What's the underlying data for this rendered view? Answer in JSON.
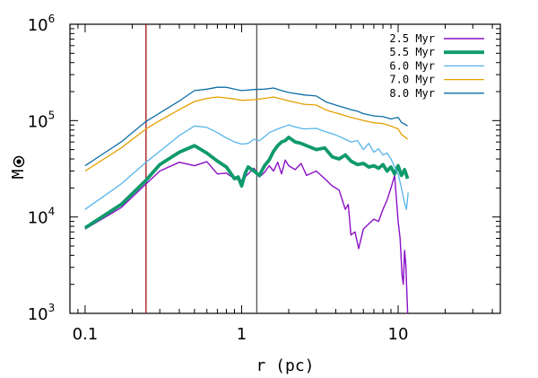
{
  "chart_data": {
    "type": "line",
    "xlabel": "r (pc)",
    "ylabel": "M",
    "ylabel_symbol": "sun-icon",
    "xscale": "log",
    "yscale": "log",
    "xlim": [
      0.08,
      45
    ],
    "ylim": [
      1000,
      1000000
    ],
    "x_tick_labels": [
      {
        "value": 0.1,
        "label": "0.1"
      },
      {
        "value": 1,
        "label": "1"
      },
      {
        "value": 10,
        "label": "10"
      }
    ],
    "y_tick_labels": [
      {
        "value": 1000,
        "base": "10",
        "exp": "3"
      },
      {
        "value": 10000,
        "base": "10",
        "exp": "4"
      },
      {
        "value": 100000,
        "base": "10",
        "exp": "5"
      },
      {
        "value": 1000000,
        "base": "10",
        "exp": "6"
      }
    ],
    "legend_position": "top-right",
    "grid": false,
    "vlines": [
      {
        "x": 0.245,
        "color": "#a01010"
      },
      {
        "x": 1.25,
        "color": "#555555"
      }
    ],
    "series": [
      {
        "name": "2.5 Myr",
        "color": "#8a0fc6",
        "width": 1.4,
        "points": [
          [
            0.1,
            7500
          ],
          [
            0.17,
            12500
          ],
          [
            0.245,
            22000
          ],
          [
            0.3,
            30000
          ],
          [
            0.4,
            37000
          ],
          [
            0.5,
            34000
          ],
          [
            0.6,
            37500
          ],
          [
            0.7,
            28000
          ],
          [
            0.8,
            28500
          ],
          [
            0.9,
            25000
          ],
          [
            1.0,
            24000
          ],
          [
            1.1,
            28000
          ],
          [
            1.2,
            32000
          ],
          [
            1.3,
            26000
          ],
          [
            1.4,
            29000
          ],
          [
            1.5,
            34000
          ],
          [
            1.6,
            30000
          ],
          [
            1.7,
            37000
          ],
          [
            1.8,
            28000
          ],
          [
            1.9,
            39000
          ],
          [
            2.0,
            34000
          ],
          [
            2.2,
            31000
          ],
          [
            2.4,
            36000
          ],
          [
            2.6,
            27000
          ],
          [
            3.0,
            30000
          ],
          [
            3.4,
            25000
          ],
          [
            3.8,
            21000
          ],
          [
            4.2,
            19000
          ],
          [
            4.6,
            12000
          ],
          [
            4.8,
            13500
          ],
          [
            5.0,
            6500
          ],
          [
            5.3,
            7000
          ],
          [
            5.6,
            4700
          ],
          [
            6.0,
            7500
          ],
          [
            6.5,
            8500
          ],
          [
            7.0,
            9500
          ],
          [
            7.5,
            9000
          ],
          [
            8.0,
            12000
          ],
          [
            8.5,
            15000
          ],
          [
            9.0,
            20000
          ],
          [
            9.5,
            27000
          ],
          [
            10.0,
            9000
          ],
          [
            10.3,
            6000
          ],
          [
            10.6,
            2500
          ],
          [
            10.8,
            2000
          ],
          [
            11.0,
            4500
          ],
          [
            11.2,
            3200
          ],
          [
            11.5,
            1000
          ]
        ]
      },
      {
        "name": "5.5 Myr",
        "color": "#0f9a6c",
        "width": 3.8,
        "points": [
          [
            0.1,
            7700
          ],
          [
            0.17,
            13500
          ],
          [
            0.245,
            24000
          ],
          [
            0.3,
            35000
          ],
          [
            0.4,
            47000
          ],
          [
            0.5,
            55000
          ],
          [
            0.6,
            46000
          ],
          [
            0.7,
            38000
          ],
          [
            0.8,
            33000
          ],
          [
            0.9,
            25000
          ],
          [
            0.95,
            26000
          ],
          [
            1.0,
            21000
          ],
          [
            1.05,
            28000
          ],
          [
            1.1,
            33000
          ],
          [
            1.2,
            30000
          ],
          [
            1.3,
            27000
          ],
          [
            1.4,
            34000
          ],
          [
            1.5,
            39000
          ],
          [
            1.6,
            48000
          ],
          [
            1.7,
            55000
          ],
          [
            1.8,
            60000
          ],
          [
            1.9,
            62000
          ],
          [
            2.0,
            67000
          ],
          [
            2.2,
            60000
          ],
          [
            2.4,
            58000
          ],
          [
            2.6,
            55000
          ],
          [
            3.0,
            50000
          ],
          [
            3.4,
            52000
          ],
          [
            3.8,
            42000
          ],
          [
            4.2,
            40000
          ],
          [
            4.6,
            44000
          ],
          [
            5.0,
            38000
          ],
          [
            5.5,
            35000
          ],
          [
            6.0,
            36000
          ],
          [
            6.5,
            33000
          ],
          [
            7.0,
            34000
          ],
          [
            7.5,
            32000
          ],
          [
            8.0,
            35000
          ],
          [
            8.5,
            30000
          ],
          [
            9.0,
            33000
          ],
          [
            9.5,
            28000
          ],
          [
            10.0,
            34000
          ],
          [
            10.5,
            27000
          ],
          [
            11.0,
            31000
          ],
          [
            11.5,
            25000
          ]
        ]
      },
      {
        "name": "6.0 Myr",
        "color": "#56b4e9",
        "width": 1.3,
        "points": [
          [
            0.1,
            12000
          ],
          [
            0.17,
            22000
          ],
          [
            0.245,
            37000
          ],
          [
            0.3,
            48000
          ],
          [
            0.4,
            70000
          ],
          [
            0.5,
            88000
          ],
          [
            0.6,
            85000
          ],
          [
            0.7,
            75000
          ],
          [
            0.8,
            66000
          ],
          [
            0.9,
            60000
          ],
          [
            1.0,
            57000
          ],
          [
            1.1,
            58000
          ],
          [
            1.2,
            64000
          ],
          [
            1.3,
            62000
          ],
          [
            1.4,
            68000
          ],
          [
            1.5,
            75000
          ],
          [
            1.7,
            82000
          ],
          [
            2.0,
            90000
          ],
          [
            2.2,
            86000
          ],
          [
            2.5,
            82000
          ],
          [
            3.0,
            83000
          ],
          [
            3.5,
            76000
          ],
          [
            4.0,
            71000
          ],
          [
            4.5,
            65000
          ],
          [
            5.0,
            60000
          ],
          [
            5.5,
            62000
          ],
          [
            6.0,
            50000
          ],
          [
            6.5,
            58000
          ],
          [
            7.0,
            47000
          ],
          [
            7.5,
            51000
          ],
          [
            8.0,
            44000
          ],
          [
            8.5,
            46000
          ],
          [
            9.0,
            40000
          ],
          [
            9.5,
            33000
          ],
          [
            10.0,
            28000
          ],
          [
            10.5,
            20000
          ],
          [
            11.0,
            14000
          ],
          [
            11.3,
            12000
          ],
          [
            11.6,
            18000
          ]
        ]
      },
      {
        "name": "7.0 Myr",
        "color": "#e69f00",
        "width": 1.3,
        "points": [
          [
            0.1,
            30000
          ],
          [
            0.17,
            52000
          ],
          [
            0.245,
            82000
          ],
          [
            0.3,
            100000
          ],
          [
            0.4,
            130000
          ],
          [
            0.5,
            158000
          ],
          [
            0.6,
            170000
          ],
          [
            0.7,
            176000
          ],
          [
            0.8,
            172000
          ],
          [
            0.9,
            168000
          ],
          [
            1.0,
            162000
          ],
          [
            1.2,
            165000
          ],
          [
            1.4,
            170000
          ],
          [
            1.6,
            176000
          ],
          [
            1.8,
            168000
          ],
          [
            2.0,
            160000
          ],
          [
            2.5,
            148000
          ],
          [
            3.0,
            145000
          ],
          [
            3.5,
            128000
          ],
          [
            4.0,
            120000
          ],
          [
            5.0,
            108000
          ],
          [
            5.5,
            104000
          ],
          [
            6.0,
            100000
          ],
          [
            7.0,
            95000
          ],
          [
            8.0,
            93000
          ],
          [
            9.0,
            88000
          ],
          [
            10.0,
            82000
          ],
          [
            10.5,
            72000
          ],
          [
            11.0,
            68000
          ],
          [
            11.5,
            64000
          ]
        ]
      },
      {
        "name": "8.0 Myr",
        "color": "#0e6ea5",
        "width": 1.3,
        "points": [
          [
            0.1,
            34000
          ],
          [
            0.17,
            60000
          ],
          [
            0.245,
            98000
          ],
          [
            0.3,
            120000
          ],
          [
            0.4,
            160000
          ],
          [
            0.5,
            205000
          ],
          [
            0.6,
            212000
          ],
          [
            0.7,
            222000
          ],
          [
            0.8,
            222000
          ],
          [
            0.9,
            212000
          ],
          [
            1.0,
            205000
          ],
          [
            1.2,
            210000
          ],
          [
            1.4,
            212000
          ],
          [
            1.6,
            218000
          ],
          [
            1.8,
            205000
          ],
          [
            2.0,
            196000
          ],
          [
            2.5,
            185000
          ],
          [
            3.0,
            180000
          ],
          [
            3.5,
            155000
          ],
          [
            4.0,
            145000
          ],
          [
            5.0,
            130000
          ],
          [
            5.5,
            125000
          ],
          [
            6.0,
            118000
          ],
          [
            7.0,
            112000
          ],
          [
            8.0,
            110000
          ],
          [
            9.0,
            104000
          ],
          [
            10.0,
            108000
          ],
          [
            10.5,
            96000
          ],
          [
            11.0,
            92000
          ],
          [
            11.5,
            88000
          ]
        ]
      }
    ]
  }
}
